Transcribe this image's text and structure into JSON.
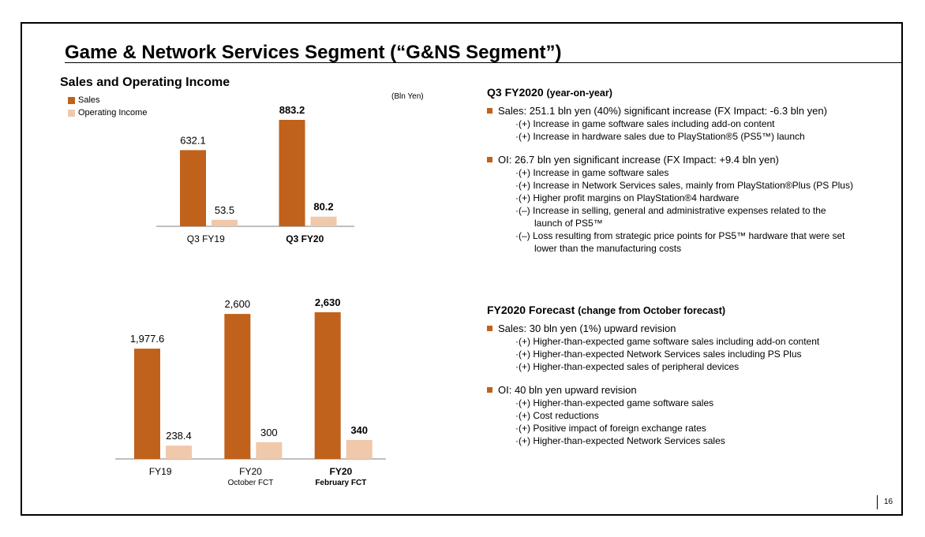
{
  "page": {
    "title": "Game & Network Services Segment (“G&NS Segment”)",
    "subtitle": "Sales and Operating Income",
    "unit": "(Bln Yen)",
    "page_number": "16"
  },
  "colors": {
    "sales": "#c0621b",
    "oi": "#f0c8aa",
    "axis": "#7f7f7f"
  },
  "chart_data": [
    {
      "type": "bar",
      "categories": [
        "Q3 FY19",
        "Q3 FY20"
      ],
      "category_sublabels": [
        "",
        ""
      ],
      "bold_categories": [
        false,
        true
      ],
      "series": [
        {
          "name": "Sales",
          "values": [
            632.1,
            883.2
          ],
          "labels": [
            "632.1",
            "883.2"
          ]
        },
        {
          "name": "Operating Income",
          "values": [
            53.5,
            80.2
          ],
          "labels": [
            "53.5",
            "80.2"
          ]
        }
      ],
      "ylim": [
        0,
        883.2
      ]
    },
    {
      "type": "bar",
      "categories": [
        "FY19",
        "FY20",
        "FY20"
      ],
      "category_sublabels": [
        "",
        "October FCT",
        "February FCT"
      ],
      "bold_categories": [
        false,
        false,
        true
      ],
      "series": [
        {
          "name": "Sales",
          "values": [
            1977.6,
            2600,
            2630
          ],
          "labels": [
            "1,977.6",
            "2,600",
            "2,630"
          ]
        },
        {
          "name": "Operating Income",
          "values": [
            238.4,
            300,
            340
          ],
          "labels": [
            "238.4",
            "300",
            "340"
          ]
        }
      ],
      "ylim": [
        0,
        2630
      ]
    }
  ],
  "q3": {
    "heading": "Q3 FY2020",
    "heading_note": "(year-on-year)",
    "sales_bullet": "Sales: 251.1 bln yen (40%) significant increase (FX Impact: -6.3 bln yen)",
    "sales_items": [
      "·(+) Increase in game software sales including add-on content",
      "·(+) Increase in hardware sales due to PlayStation®5 (PS5™) launch"
    ],
    "oi_bullet": "OI: 26.7 bln yen significant increase (FX Impact: +9.4 bln yen)",
    "oi_items": [
      "·(+) Increase in game software sales",
      "·(+) Increase in Network Services sales, mainly from PlayStation®Plus (PS Plus)",
      "·(+) Higher profit margins on PlayStation®4 hardware",
      "·(–) Increase in selling, general and administrative expenses related to the",
      "launch of PS5™",
      "·(–) Loss resulting from strategic price points for PS5™ hardware that were set",
      "lower than the manufacturing costs"
    ]
  },
  "forecast": {
    "heading": "FY2020 Forecast",
    "heading_note": "(change from October forecast)",
    "sales_bullet": "Sales: 30 bln yen (1%) upward revision",
    "sales_items": [
      "·(+) Higher-than-expected game software sales including add-on content",
      "·(+) Higher-than-expected Network Services sales including PS Plus",
      "·(+) Higher-than-expected sales of peripheral devices"
    ],
    "oi_bullet": "OI: 40 bln yen upward revision",
    "oi_items": [
      "·(+) Higher-than-expected game software sales",
      "·(+) Cost reductions",
      "·(+) Positive impact of foreign exchange rates",
      "·(+) Higher-than-expected Network Services sales"
    ]
  }
}
